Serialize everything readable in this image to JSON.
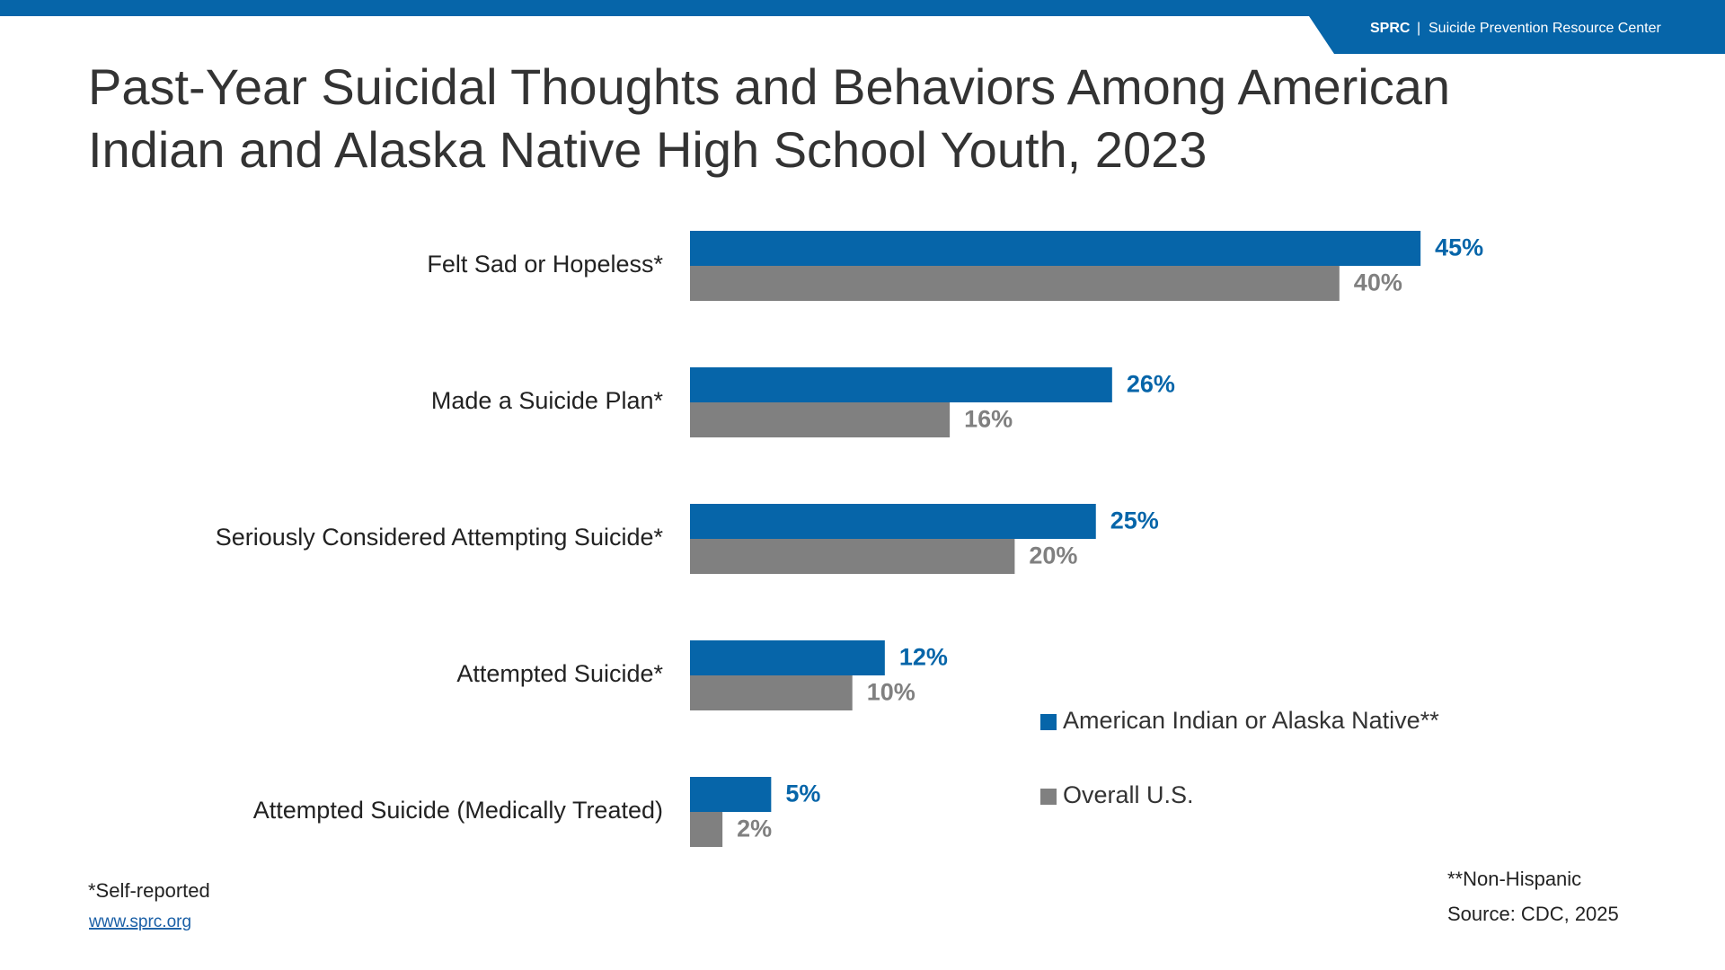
{
  "header": {
    "org": "SPRC",
    "separator": "|",
    "name": "Suicide Prevention Resource Center"
  },
  "chart_data": {
    "type": "bar",
    "orientation": "horizontal",
    "title": "Past-Year Suicidal Thoughts and Behaviors Among American Indian and Alaska Native High School Youth, 2023",
    "categories": [
      "Felt Sad or Hopeless*",
      "Made a Suicide Plan*",
      "Seriously Considered Attempting Suicide*",
      "Attempted Suicide*",
      "Attempted Suicide (Medically Treated)"
    ],
    "series": [
      {
        "name": "American Indian or Alaska Native**",
        "color": "#0665a9",
        "values": [
          45,
          26,
          25,
          12,
          5
        ],
        "value_labels": [
          "45%",
          "26%",
          "25%",
          "12%",
          "5%"
        ]
      },
      {
        "name": "Overall U.S.",
        "color": "#808080",
        "values": [
          40,
          16,
          20,
          10,
          2
        ],
        "value_labels": [
          "40%",
          "16%",
          "20%",
          "10%",
          "2%"
        ]
      }
    ],
    "legend": "lower-right"
  },
  "footnotes": {
    "left": "*Self-reported",
    "link": "www.sprc.org",
    "right": [
      "**Non-Hispanic",
      "Source: CDC, 2025"
    ]
  }
}
